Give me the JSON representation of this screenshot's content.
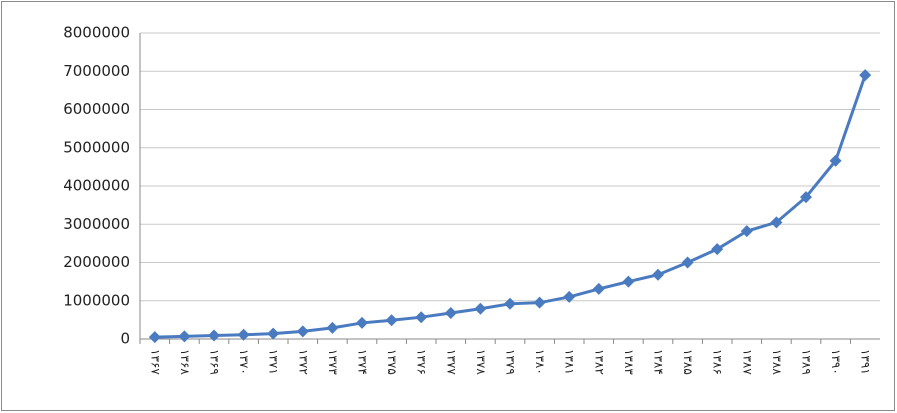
{
  "chart_data": {
    "type": "line",
    "categories": [
      "۱۳۶۷",
      "۱۳۶۸",
      "۱۳۶۹",
      "۱۳۷۰",
      "۱۳۷۱",
      "۱۳۷۲",
      "۱۳۷۳",
      "۱۳۷۴",
      "۱۳۷۵",
      "۱۳۷۶",
      "۱۳۷۷",
      "۱۳۷۸",
      "۱۳۷۹",
      "۱۳۸۰",
      "۱۳۸۱",
      "۱۳۸۲",
      "۱۳۸۳",
      "۱۳۸۴",
      "۱۳۸۵",
      "۱۳۸۶",
      "۱۳۸۷",
      "۱۳۸۸",
      "۱۳۸۹",
      "۱۳۹۰",
      "۱۳۹۱"
    ],
    "values": [
      50000,
      70000,
      90000,
      110000,
      140000,
      200000,
      290000,
      420000,
      490000,
      570000,
      680000,
      790000,
      920000,
      950000,
      1100000,
      1310000,
      1500000,
      1680000,
      2000000,
      2350000,
      2820000,
      3050000,
      3710000,
      4660000,
      6900000
    ],
    "color": "#4a7bc0",
    "ylim": [
      0,
      8000000
    ],
    "yticks": [
      0,
      1000000,
      2000000,
      3000000,
      4000000,
      5000000,
      6000000,
      7000000,
      8000000
    ],
    "grid": true
  }
}
